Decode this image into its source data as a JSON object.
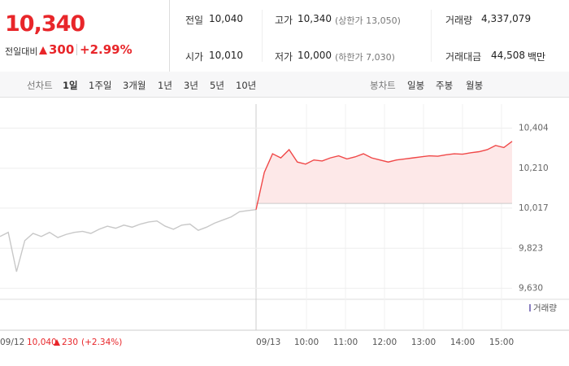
{
  "header": {
    "price": "10,340",
    "change_label": "전일대비",
    "change": "300",
    "change_rate": "+2.99%"
  },
  "info": [
    [
      {
        "label": "전일",
        "value": "10,040"
      },
      {
        "label": "고가",
        "value": "10,340",
        "note": "(상한가 13,050)"
      },
      {
        "label": "거래량",
        "value": "4,337,079"
      }
    ],
    [
      {
        "label": "시가",
        "value": "10,010"
      },
      {
        "label": "저가",
        "value": "10,000",
        "note": "(하한가 7,030)"
      },
      {
        "label": "거래대금",
        "value": "44,508",
        "unit": "백만"
      }
    ]
  ],
  "tabs": {
    "line_label": "선차트",
    "line_periods": [
      "1일",
      "1주일",
      "3개월",
      "1년",
      "3년",
      "5년",
      "10년"
    ],
    "candle_label": "봉차트",
    "candle_periods": [
      "일봉",
      "주봉",
      "월봉"
    ]
  },
  "chart_data": {
    "type": "line",
    "series": [
      {
        "color": "#c8c8c8",
        "values": [
          9880,
          9900,
          9710,
          9860,
          9895,
          9880,
          9900,
          9875,
          9890,
          9900,
          9905,
          9895,
          9915,
          9930,
          9920,
          9935,
          9925,
          9940,
          9950,
          9955,
          9930,
          9915,
          9935,
          9940,
          9910,
          9925,
          9945,
          9960,
          9975,
          10000,
          10005,
          10010
        ]
      },
      {
        "color": "#f04848",
        "fill": "#fde8e8",
        "values": [
          10010,
          10190,
          10280,
          10260,
          10300,
          10240,
          10230,
          10250,
          10245,
          10260,
          10270,
          10255,
          10265,
          10280,
          10260,
          10250,
          10240,
          10250,
          10255,
          10260,
          10265,
          10270,
          10268,
          10275,
          10280,
          10278,
          10285,
          10290,
          10300,
          10320,
          10310,
          10340
        ]
      }
    ],
    "baseline": 10040,
    "ylim": [
      9600,
      10520
    ],
    "yticks": [
      {
        "value": 10404,
        "label": "10,404"
      },
      {
        "value": 10210,
        "label": "10,210"
      },
      {
        "value": 10017,
        "label": "10,017"
      },
      {
        "value": 9823,
        "label": "9,823"
      },
      {
        "value": 9630,
        "label": "9,630"
      }
    ],
    "grid": true,
    "x_labels": [
      "09/12",
      "09/13",
      "10:00",
      "11:00",
      "12:00",
      "13:00",
      "14:00",
      "15:00"
    ],
    "prev_note": {
      "close": "10,040",
      "change": "230",
      "rate": "(+2.34%)"
    },
    "volume_label": "거래량"
  }
}
